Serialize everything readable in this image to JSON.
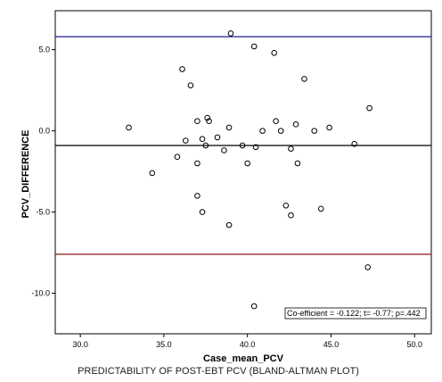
{
  "chart_data": {
    "type": "scatter",
    "title": "",
    "xlabel": "Case_mean_PCV",
    "ylabel": "PCV_DIFFERENCE",
    "caption": "PREDICTABILITY OF POST-EBT PCV (BLAND-ALTMAN PLOT)",
    "xlim": [
      28.5,
      51.0
    ],
    "ylim": [
      -12.5,
      7.4
    ],
    "x_ticks": [
      30.0,
      35.0,
      40.0,
      45.0,
      50.0
    ],
    "x_tick_labels": [
      "30.0",
      "35.0",
      "40.0",
      "45.0",
      "50.0"
    ],
    "y_ticks": [
      5.0,
      0.0,
      -5.0,
      -10.0
    ],
    "y_tick_labels": [
      "5.0",
      "0.0",
      "-5.0",
      "-10.0"
    ],
    "grid": false,
    "reference_lines": [
      {
        "y": 5.8,
        "color": "#1f1f8c"
      },
      {
        "y": -0.9,
        "color": "#000000"
      },
      {
        "y": -7.6,
        "color": "#8b1a1a"
      }
    ],
    "annotation": "Co-efficient = -0.122; t= -0.77; p=.442",
    "marker_color": "#000000",
    "points": [
      {
        "x": 32.9,
        "y": 0.2
      },
      {
        "x": 34.3,
        "y": -2.6
      },
      {
        "x": 35.8,
        "y": -1.6
      },
      {
        "x": 36.1,
        "y": 3.8
      },
      {
        "x": 36.3,
        "y": -0.6
      },
      {
        "x": 36.6,
        "y": 2.8
      },
      {
        "x": 37.0,
        "y": 0.6
      },
      {
        "x": 37.0,
        "y": -2.0
      },
      {
        "x": 37.0,
        "y": -4.0
      },
      {
        "x": 37.3,
        "y": -0.5
      },
      {
        "x": 37.3,
        "y": -5.0
      },
      {
        "x": 37.5,
        "y": -0.9
      },
      {
        "x": 37.6,
        "y": 0.8
      },
      {
        "x": 37.7,
        "y": 0.6
      },
      {
        "x": 38.2,
        "y": -0.4
      },
      {
        "x": 38.6,
        "y": -1.2
      },
      {
        "x": 38.9,
        "y": 0.2
      },
      {
        "x": 38.9,
        "y": -5.8
      },
      {
        "x": 39.0,
        "y": 6.0
      },
      {
        "x": 39.7,
        "y": -0.9
      },
      {
        "x": 40.0,
        "y": -2.0
      },
      {
        "x": 40.4,
        "y": 5.2
      },
      {
        "x": 40.5,
        "y": -1.0
      },
      {
        "x": 40.4,
        "y": -10.8
      },
      {
        "x": 40.9,
        "y": 0.0
      },
      {
        "x": 41.6,
        "y": 4.8
      },
      {
        "x": 41.7,
        "y": 0.6
      },
      {
        "x": 42.0,
        "y": 0.0
      },
      {
        "x": 42.3,
        "y": -4.6
      },
      {
        "x": 42.6,
        "y": -1.1
      },
      {
        "x": 42.6,
        "y": -5.2
      },
      {
        "x": 42.9,
        "y": 0.4
      },
      {
        "x": 43.0,
        "y": -2.0
      },
      {
        "x": 43.4,
        "y": 3.2
      },
      {
        "x": 44.0,
        "y": 0.0
      },
      {
        "x": 44.4,
        "y": -4.8
      },
      {
        "x": 44.9,
        "y": 0.2
      },
      {
        "x": 46.4,
        "y": -0.8
      },
      {
        "x": 47.2,
        "y": -8.4
      },
      {
        "x": 47.3,
        "y": 1.4
      }
    ]
  }
}
